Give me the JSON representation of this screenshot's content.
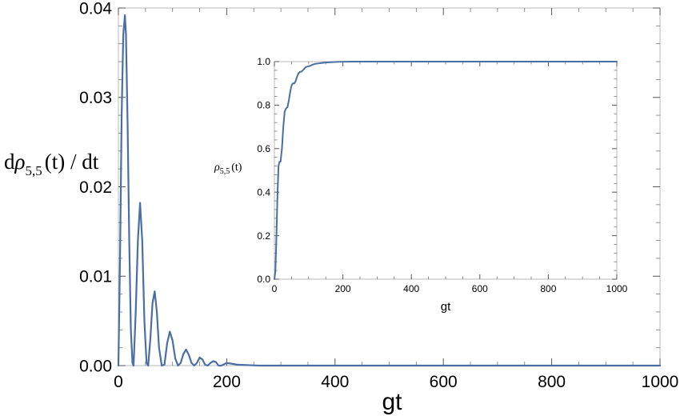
{
  "chart_data": [
    {
      "type": "line",
      "xlabel": "gt",
      "ylabel": "dρ5,5(t) / dt",
      "ylabel_parts": {
        "prefix": "d",
        "symbol": "ρ",
        "sub": "5,5",
        "suffix": "(t) / dt"
      },
      "xlim": [
        0,
        1000
      ],
      "ylim": [
        0,
        0.04
      ],
      "x_ticks": [
        "0",
        "200",
        "400",
        "600",
        "800",
        "1000"
      ],
      "y_ticks": [
        "0.00",
        "0.01",
        "0.02",
        "0.03",
        "0.04"
      ],
      "line_color": "#4a6fa5",
      "grid": false,
      "series": [
        {
          "x": [
            0,
            3,
            6,
            9,
            12,
            14,
            17,
            20,
            23,
            26,
            28,
            32,
            36,
            40,
            44,
            48,
            52,
            55,
            59,
            63,
            67,
            71,
            75,
            80,
            85,
            90,
            95,
            100,
            105,
            110,
            115,
            120,
            125,
            130,
            135,
            140,
            145,
            150,
            155,
            160,
            165,
            170,
            175,
            180,
            185,
            190,
            200,
            210,
            220,
            240,
            260,
            300,
            400,
            600,
            800,
            1000
          ],
          "y": [
            0.0,
            0.012,
            0.028,
            0.037,
            0.0392,
            0.037,
            0.027,
            0.014,
            0.004,
            0.0003,
            0.0,
            0.006,
            0.014,
            0.0182,
            0.014,
            0.005,
            0.0003,
            0.0,
            0.003,
            0.007,
            0.0083,
            0.006,
            0.002,
            0.0,
            0.0001,
            0.0025,
            0.0038,
            0.0028,
            0.0008,
            0.0,
            0.0003,
            0.0013,
            0.0018,
            0.0012,
            0.0003,
            0.0,
            0.0003,
            0.0009,
            0.0007,
            0.0001,
            0.0,
            0.0003,
            0.0005,
            0.0004,
            0.0,
            0.0,
            0.0003,
            0.0002,
            0.0001,
            5e-05,
            0.0,
            0.0,
            0.0,
            0.0,
            0.0,
            0.0
          ]
        }
      ]
    },
    {
      "type": "line",
      "xlabel": "gt",
      "ylabel": "ρ5,5(t)",
      "ylabel_parts": {
        "symbol": "ρ",
        "sub": "5,5",
        "suffix": "(t)"
      },
      "xlim": [
        0,
        1000
      ],
      "ylim": [
        0,
        1.0
      ],
      "x_ticks": [
        "0",
        "200",
        "400",
        "600",
        "800",
        "1000"
      ],
      "y_ticks": [
        "0.0",
        "0.2",
        "0.4",
        "0.6",
        "0.8",
        "1.0"
      ],
      "line_color": "#4a6fa5",
      "grid": false,
      "series": [
        {
          "x": [
            0,
            3,
            6,
            9,
            12,
            15,
            18,
            22,
            26,
            30,
            34,
            38,
            42,
            46,
            50,
            54,
            58,
            62,
            66,
            70,
            74,
            80,
            86,
            92,
            98,
            104,
            110,
            120,
            130,
            140,
            150,
            160,
            175,
            190,
            210,
            230,
            250,
            300,
            400,
            600,
            800,
            1000
          ],
          "y": [
            0.0,
            0.04,
            0.2,
            0.39,
            0.52,
            0.54,
            0.54,
            0.6,
            0.7,
            0.77,
            0.785,
            0.79,
            0.82,
            0.86,
            0.89,
            0.9,
            0.9,
            0.91,
            0.93,
            0.945,
            0.952,
            0.955,
            0.965,
            0.975,
            0.978,
            0.98,
            0.985,
            0.99,
            0.992,
            0.994,
            0.996,
            0.997,
            0.998,
            0.999,
            0.9995,
            1.0,
            1.0,
            1.0,
            1.0,
            1.0,
            1.0,
            1.0
          ]
        }
      ]
    }
  ]
}
